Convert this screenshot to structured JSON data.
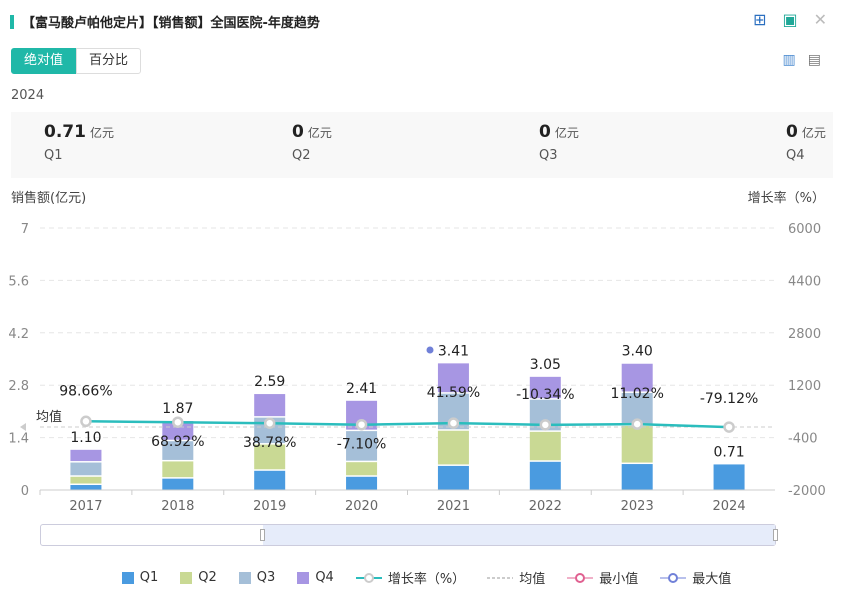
{
  "header": {
    "title": "【富马酸卢帕他定片】【销售额】全国医院-年度趋势",
    "icons": [
      "excel-export-icon",
      "image-export-icon",
      "close-icon"
    ]
  },
  "tabs": [
    {
      "label": "绝对值",
      "active": true
    },
    {
      "label": "百分比",
      "active": false
    }
  ],
  "view_icons": [
    "bar-chart-icon",
    "table-icon"
  ],
  "year": "2024",
  "summary": [
    {
      "value": "0.71",
      "unit": "亿元",
      "label": "Q1"
    },
    {
      "value": "0",
      "unit": "亿元",
      "label": "Q2"
    },
    {
      "value": "0",
      "unit": "亿元",
      "label": "Q3"
    },
    {
      "value": "0",
      "unit": "亿元",
      "label": "Q4"
    }
  ],
  "chart_data": {
    "type": "bar",
    "stacked": true,
    "ylabel": "销售额(亿元)",
    "y2label": "增长率（%）",
    "ylim": [
      0,
      7
    ],
    "yticks": [
      "0",
      "1.4",
      "2.8",
      "4.2",
      "5.6",
      "7"
    ],
    "y2lim": [
      -2000,
      6000
    ],
    "y2ticks": [
      "-2000",
      "-400",
      "1200",
      "2800",
      "4400",
      "6000"
    ],
    "categories": [
      "2017",
      "2018",
      "2019",
      "2020",
      "2021",
      "2022",
      "2023",
      "2024"
    ],
    "series": [
      {
        "name": "Q1",
        "color": "#4a9be0",
        "values": [
          0.16,
          0.33,
          0.54,
          0.38,
          0.67,
          0.78,
          0.72,
          0.71
        ]
      },
      {
        "name": "Q2",
        "color": "#c9d994",
        "values": [
          0.22,
          0.46,
          0.7,
          0.39,
          0.94,
          0.8,
          1.02,
          0
        ]
      },
      {
        "name": "Q3",
        "color": "#a5bfd8",
        "values": [
          0.38,
          0.54,
          0.72,
          0.83,
          0.99,
          0.86,
          0.88,
          0
        ]
      },
      {
        "name": "Q4",
        "color": "#a796e3",
        "values": [
          0.34,
          0.54,
          0.63,
          0.81,
          0.81,
          0.61,
          0.78,
          0
        ]
      }
    ],
    "totals": [
      "1.10",
      "1.87",
      "2.59",
      "2.41",
      "3.41",
      "3.05",
      "3.40",
      "0.71"
    ],
    "growth": {
      "name": "增长率（%）",
      "color": "#2bbdbd",
      "values": [
        98.66,
        68.92,
        38.78,
        -7.1,
        41.59,
        -10.34,
        11.02,
        -79.12
      ],
      "labels": [
        "98.66%",
        "68.92%",
        "38.78%",
        "-7.10%",
        "41.59%",
        "-10.34%",
        "11.02%",
        "-79.12%"
      ]
    },
    "average_label": "均值",
    "legend": [
      "Q1",
      "Q2",
      "Q3",
      "Q4",
      "增长率（%）",
      "均值",
      "最小值",
      "最大值"
    ],
    "legend_position": "bottom",
    "grid": true
  }
}
